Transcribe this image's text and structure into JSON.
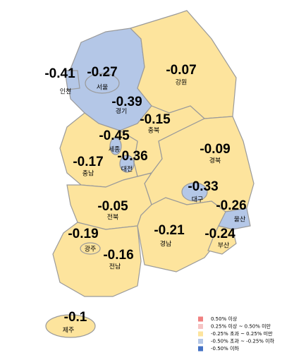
{
  "regions": [
    {
      "name": "경기",
      "value": -0.39,
      "color": "#b4c7e7"
    },
    {
      "name": "강원",
      "value": -0.07,
      "color": "#fde49d"
    },
    {
      "name": "충북",
      "value": -0.15,
      "color": "#fde49d"
    },
    {
      "name": "충남",
      "value": -0.17,
      "color": "#fde49d"
    },
    {
      "name": "경북",
      "value": -0.09,
      "color": "#fde49d"
    },
    {
      "name": "전북",
      "value": -0.05,
      "color": "#fde49d"
    },
    {
      "name": "전남",
      "value": -0.16,
      "color": "#fde49d"
    },
    {
      "name": "경남",
      "value": -0.21,
      "color": "#fde49d"
    },
    {
      "name": "울산",
      "value": -0.26,
      "color": "#b4c7e7"
    },
    {
      "name": "부산",
      "value": -0.24,
      "color": "#fde49d"
    },
    {
      "name": "대구",
      "value": -0.33,
      "color": "#b4c7e7"
    },
    {
      "name": "서울",
      "value": -0.27,
      "color": "#b4c7e7"
    },
    {
      "name": "인천",
      "value": -0.41,
      "color": "#b4c7e7"
    },
    {
      "name": "세종",
      "value": -0.45,
      "color": "#b4c7e7"
    },
    {
      "name": "대전",
      "value": -0.36,
      "color": "#b4c7e7"
    },
    {
      "name": "광주",
      "value": -0.19,
      "color": "#fde49d"
    },
    {
      "name": "제주",
      "value": -0.1,
      "color": "#fde49d"
    }
  ],
  "legend": [
    {
      "label": "0.50% 이상",
      "color": "#f08080"
    },
    {
      "label": "0.25% 이상 ~ 0.50% 미만",
      "color": "#f6c4c4"
    },
    {
      "label": "-0.25% 초과 ~ 0.25% 미만",
      "color": "#fde49d"
    },
    {
      "label": "-0.50% 초과 ~ -0.25% 이하",
      "color": "#b4c7e7"
    },
    {
      "label": "-0.50% 이하",
      "color": "#4472c4"
    }
  ]
}
